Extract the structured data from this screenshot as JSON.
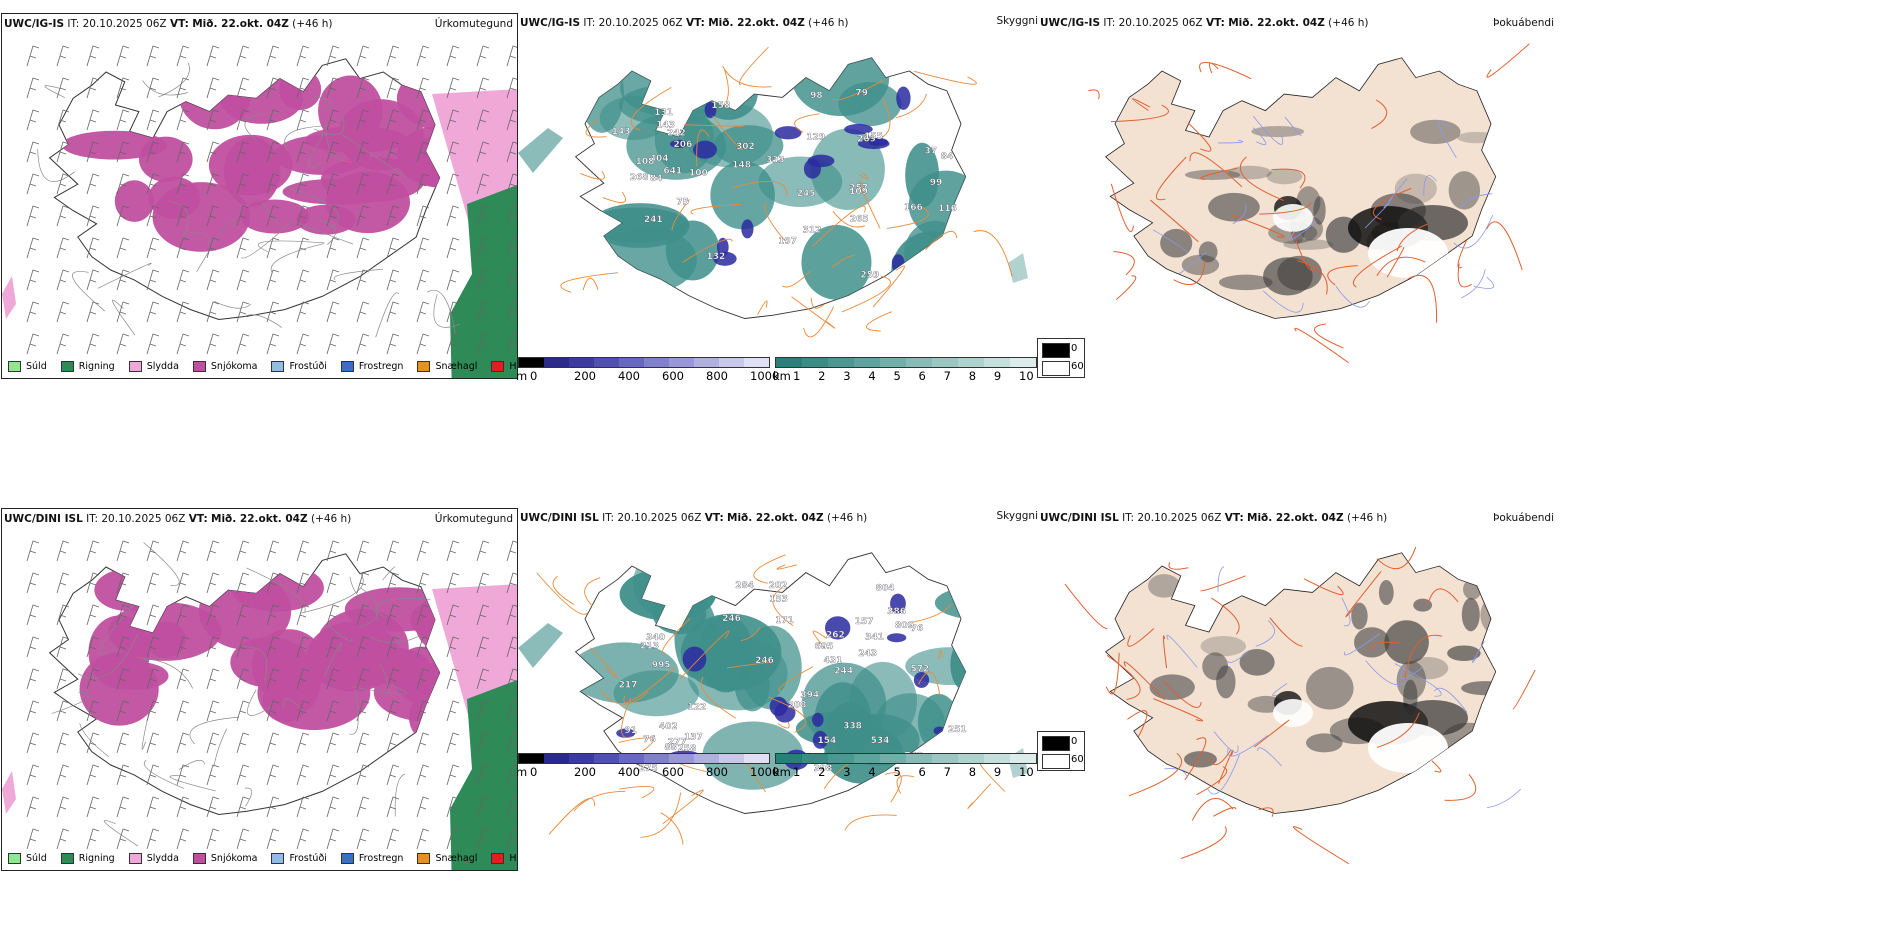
{
  "rows": [
    {
      "model": "UWC/IG-IS",
      "it_label": "IT:",
      "it_value": "20.10.2025 06Z",
      "vt_label": "VT:",
      "vt_value": "Mið. 22.okt. 04Z",
      "lead": "(+46 h)",
      "panel_precip_title": "Úrkomutegund",
      "panel_cloud_title": "Skyggni",
      "panel_fog_title": "Þokuábendi",
      "cloud_labels": [
        "269",
        "257",
        "197",
        "302",
        "312",
        "268",
        "143",
        "166",
        "242",
        "84",
        "99",
        "641",
        "98",
        "241",
        "148",
        "75",
        "109",
        "84",
        "404",
        "108",
        "259",
        "265",
        "245",
        "129",
        "132",
        "333",
        "116",
        "206",
        "143",
        "100",
        "155",
        "37",
        "79",
        "158",
        "131"
      ]
    },
    {
      "model": "UWC/DINI ISL",
      "it_label": "IT:",
      "it_value": "20.10.2025 06Z",
      "vt_label": "VT:",
      "vt_value": "Mið. 22.okt. 04Z",
      "lead": "(+46 h)",
      "panel_precip_title": "Úrkomutegund",
      "panel_cloud_title": "Skyggni",
      "panel_fog_title": "Þokuábendi",
      "cloud_labels": [
        "995",
        "202",
        "338",
        "213",
        "277",
        "157",
        "605",
        "258",
        "208",
        "251",
        "572",
        "246",
        "398",
        "180",
        "534",
        "341",
        "394",
        "76",
        "804",
        "137",
        "275",
        "217",
        "763",
        "243",
        "386",
        "809",
        "402",
        "171",
        "153",
        "244",
        "284",
        "76",
        "154",
        "88",
        "91",
        "246",
        "340",
        "262",
        "88",
        "431",
        "122"
      ]
    }
  ],
  "precip_legend": [
    {
      "label": "Súld",
      "color": "#8fe88f"
    },
    {
      "label": "Rigning",
      "color": "#2e8b57"
    },
    {
      "label": "Slydda",
      "color": "#f0a8d8"
    },
    {
      "label": "Snjókoma",
      "color": "#c04fa0"
    },
    {
      "label": "Frostúði",
      "color": "#8fbde8"
    },
    {
      "label": "Frostregn",
      "color": "#3a70c0"
    },
    {
      "label": "Snæhagl",
      "color": "#e89020"
    },
    {
      "label": "Haglél",
      "color": "#e02020"
    }
  ],
  "cloudbase_bar": {
    "unit": "m",
    "ticks": [
      "0",
      "200",
      "400",
      "600",
      "800",
      "1000"
    ],
    "colors": [
      "#000000",
      "#2a2a8a",
      "#3a3aa0",
      "#5050b0",
      "#6868c0",
      "#8080cc",
      "#9898d8",
      "#b0b0e0",
      "#c8c8ea",
      "#e0e0f4"
    ]
  },
  "vis_bar": {
    "unit": "km",
    "ticks": [
      "1",
      "2",
      "3",
      "4",
      "5",
      "6",
      "7",
      "8",
      "9",
      "10"
    ],
    "colors": [
      "#2a7f7a",
      "#3b8b86",
      "#4d9792",
      "#5fa39e",
      "#72afaa",
      "#86bbb6",
      "#9ac7c2",
      "#aed3cf",
      "#c4dfdc",
      "#dbecea"
    ]
  },
  "fog_legend": [
    {
      "label": "0",
      "color": "#000000"
    },
    {
      "label": "60",
      "color": "#ffffff"
    }
  ],
  "colors": {
    "land_fog": "#f3e1d2",
    "roads": "#e06030",
    "rivers": "#8899ee",
    "snow": "#c04fa0",
    "sleet": "#f0a8d8",
    "rain": "#2e8b57",
    "cloud_teal": "#3f8f8a",
    "cloud_blue": "#2a2aa0"
  }
}
